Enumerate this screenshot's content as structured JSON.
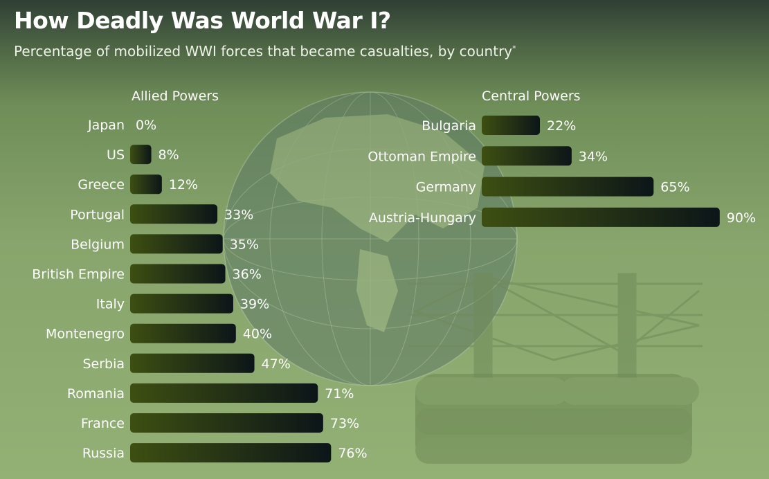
{
  "header": {
    "title": "How Deadly Was World War I?",
    "subtitle": "Percentage of mobilized WWI forces that became casualties, by country",
    "footnote_mark": "*"
  },
  "colors": {
    "bar_start": "#3d4f12",
    "bar_end": "#0c1518",
    "text": "#ffffff",
    "background": "#8aa86e"
  },
  "chart_data": [
    {
      "type": "bar",
      "orientation": "horizontal",
      "title": "Allied Powers",
      "unit": "%",
      "categories": [
        "Japan",
        "US",
        "Greece",
        "Portugal",
        "Belgium",
        "British Empire",
        "Italy",
        "Montenegro",
        "Serbia",
        "Romania",
        "France",
        "Russia"
      ],
      "values": [
        0,
        8,
        12,
        33,
        35,
        36,
        39,
        40,
        47,
        71,
        73,
        76
      ],
      "data_labels": [
        "0%",
        "8%",
        "12%",
        "33%",
        "35%",
        "36%",
        "39%",
        "40%",
        "47%",
        "71%",
        "73%",
        "76%"
      ],
      "xlim": [
        0,
        100
      ]
    },
    {
      "type": "bar",
      "orientation": "horizontal",
      "title": "Central Powers",
      "unit": "%",
      "categories": [
        "Bulgaria",
        "Ottoman Empire",
        "Germany",
        "Austria-Hungary"
      ],
      "values": [
        22,
        34,
        65,
        90
      ],
      "data_labels": [
        "22%",
        "34%",
        "65%",
        "90%"
      ],
      "xlim": [
        0,
        100
      ]
    }
  ]
}
